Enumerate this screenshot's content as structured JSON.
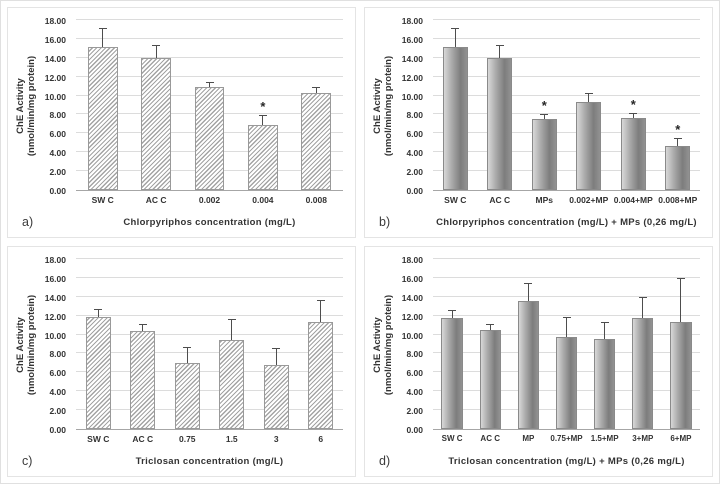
{
  "figure": {
    "colors": {
      "grid": "#dcdcdc",
      "axis": "#a6a6a6",
      "text": "#333333",
      "err": "#4d4d4d",
      "hatch": "#a3a3a3",
      "hatchborder": "#999999",
      "solidborder": "#8a8a8a",
      "solid1": "#d8d8d8",
      "solid2": "#7d7d7d",
      "solid3": "#929292",
      "frame": "#e4e4e4"
    }
  },
  "chart_data": [
    {
      "type": "bar",
      "panel_letter": "a)",
      "bar_style": "hatched",
      "ylabel_line1": "ChE Activity",
      "ylabel_line2": "(nmol/min/mg protein)",
      "xlabel": "Chlorpyriphos concentration (mg/L)",
      "ylim": [
        0,
        18
      ],
      "ytick_step": 2,
      "grid": true,
      "categories": [
        "SW C",
        "AC C",
        "0.002",
        "0.004",
        "0.008"
      ],
      "values": [
        15.1,
        14.0,
        10.9,
        6.9,
        10.3
      ],
      "errors": [
        1.9,
        1.2,
        0.4,
        0.9,
        0.5
      ],
      "significant": [
        false,
        false,
        false,
        true,
        false
      ]
    },
    {
      "type": "bar",
      "panel_letter": "b)",
      "bar_style": "solid",
      "ylabel_line1": "ChE Activity",
      "ylabel_line2": "(nmol/min/mg protein)",
      "xlabel": "Chlorpyriphos concentration (mg/L) + MPs (0,26 mg/L)",
      "ylim": [
        0,
        18
      ],
      "ytick_step": 2,
      "grid": true,
      "categories": [
        "SW C",
        "AC C",
        "MPs",
        "0.002+MP",
        "0.004+MP",
        "0.008+MP"
      ],
      "values": [
        15.1,
        14.0,
        7.5,
        9.3,
        7.6,
        4.7
      ],
      "errors": [
        1.9,
        1.2,
        0.45,
        0.85,
        0.5,
        0.7
      ],
      "significant": [
        false,
        false,
        true,
        false,
        true,
        true
      ]
    },
    {
      "type": "bar",
      "panel_letter": "c)",
      "bar_style": "hatched",
      "ylabel_line1": "ChE Activity",
      "ylabel_line2": "(nmol/min/mg protein)",
      "xlabel": "Triclosan concentration (mg/L)",
      "ylim": [
        0,
        18
      ],
      "ytick_step": 2,
      "grid": true,
      "categories": [
        "SW C",
        "AC C",
        "0.75",
        "1.5",
        "3",
        "6"
      ],
      "values": [
        11.9,
        10.4,
        7.0,
        9.4,
        6.8,
        11.3
      ],
      "errors": [
        0.7,
        0.65,
        1.6,
        2.1,
        1.7,
        2.3
      ],
      "significant": [
        false,
        false,
        false,
        false,
        false,
        false
      ]
    },
    {
      "type": "bar",
      "panel_letter": "d)",
      "bar_style": "solid",
      "ylabel_line1": "ChE Activity",
      "ylabel_line2": "(nmol/min/mg protein)",
      "xlabel": "Triclosan concentration (mg/L) + MPs (0,26 mg/L)",
      "ylim": [
        0,
        18
      ],
      "ytick_step": 2,
      "grid": true,
      "categories": [
        "SW C",
        "AC C",
        "MP",
        "0.75+MP",
        "1.5+MP",
        "3+MP",
        "6+MP"
      ],
      "values": [
        11.75,
        10.45,
        13.6,
        9.7,
        9.5,
        11.75,
        11.35
      ],
      "errors": [
        0.75,
        0.6,
        1.75,
        2.1,
        1.7,
        2.15,
        4.5
      ],
      "significant": [
        false,
        false,
        false,
        false,
        false,
        false,
        false
      ]
    }
  ]
}
